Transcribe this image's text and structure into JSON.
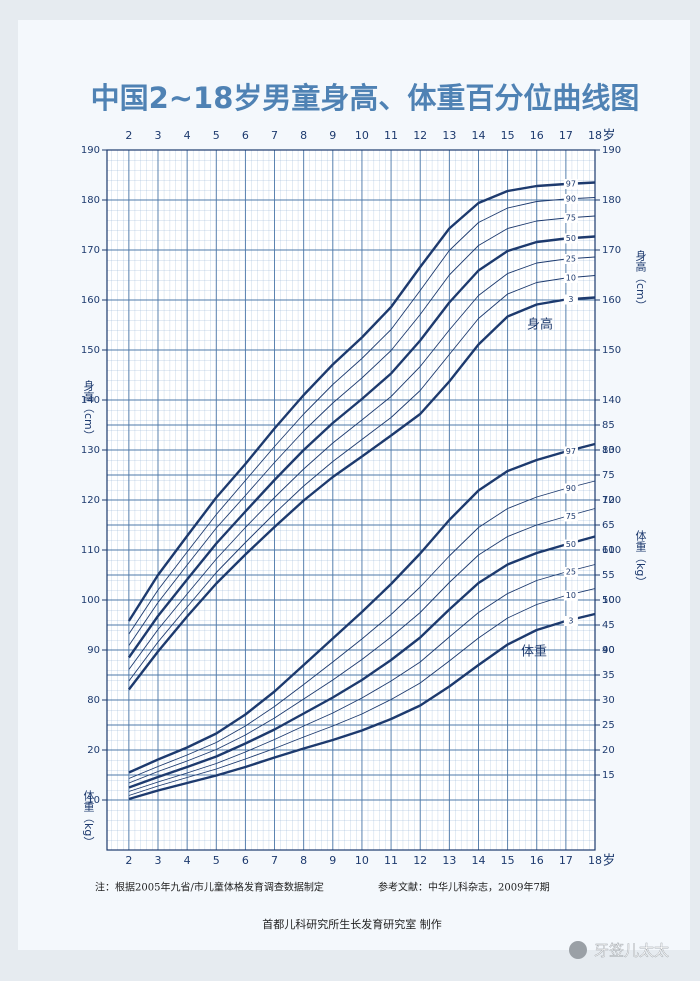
{
  "title": "中国2~18岁男童身高、体重百分位曲线图",
  "notes": [
    "注：根据2005年九省/市儿童体格发育调查数据制定",
    "参考文献：中华儿科杂志，2009年7期"
  ],
  "credit": "首都儿科研究所生长发育研究室  制作",
  "watermark": "牙签儿太太",
  "chart_data": [
    {
      "type": "line",
      "ylabel": "身高（cm）",
      "xlabel": "岁",
      "annotation": "身高",
      "x": [
        2,
        3,
        4,
        5,
        6,
        7,
        8,
        9,
        10,
        11,
        12,
        13,
        14,
        15,
        16,
        17,
        18
      ],
      "xlim": [
        1.25,
        18
      ],
      "xticks": [
        2,
        3,
        4,
        5,
        6,
        7,
        8,
        9,
        10,
        11,
        12,
        13,
        14,
        15,
        16,
        17,
        18
      ],
      "ylim": [
        50,
        190
      ],
      "yticks": [
        80,
        90,
        100,
        110,
        120,
        130,
        140,
        150,
        160,
        170,
        180,
        190
      ],
      "y2lim": [
        50,
        190
      ],
      "y2ticks": [
        90,
        100,
        110,
        120,
        130,
        140,
        150,
        160,
        170,
        180,
        190
      ],
      "grid": true,
      "series": [
        {
          "name": "3",
          "color": "#1d3a6e",
          "values": [
            82.1,
            89.7,
            96.7,
            103.3,
            109.1,
            114.6,
            119.9,
            124.6,
            128.7,
            132.9,
            137.2,
            143.7,
            151.1,
            156.7,
            159.1,
            160.1,
            160.5
          ]
        },
        {
          "name": "10",
          "color": "#1d3a6e",
          "values": [
            83.8,
            91.6,
            98.6,
            105.5,
            111.5,
            117.3,
            122.8,
            127.7,
            132.1,
            136.5,
            141.9,
            149.1,
            156.3,
            161.2,
            163.5,
            164.4,
            164.9
          ]
        },
        {
          "name": "25",
          "color": "#1d3a6e",
          "values": [
            86.1,
            94.1,
            101.2,
            108.2,
            114.5,
            120.5,
            126.2,
            131.4,
            136.0,
            140.7,
            146.7,
            154.0,
            160.9,
            165.3,
            167.4,
            168.2,
            168.6
          ]
        },
        {
          "name": "50",
          "color": "#1d3a6e",
          "values": [
            88.5,
            96.8,
            104.1,
            111.3,
            117.7,
            124.0,
            130.0,
            135.4,
            140.2,
            145.3,
            151.9,
            159.5,
            165.9,
            169.8,
            171.6,
            172.3,
            172.7
          ]
        },
        {
          "name": "75",
          "color": "#1d3a6e",
          "values": [
            90.9,
            99.5,
            107.0,
            114.4,
            120.9,
            127.5,
            133.8,
            139.4,
            144.4,
            149.9,
            157.1,
            165.0,
            170.9,
            174.3,
            175.8,
            176.4,
            176.8
          ]
        },
        {
          "name": "90",
          "color": "#1d3a6e",
          "values": [
            93.2,
            102.0,
            109.6,
            117.1,
            123.9,
            130.7,
            137.2,
            143.1,
            148.3,
            154.1,
            161.9,
            169.9,
            175.5,
            178.4,
            179.7,
            180.2,
            180.5
          ]
        },
        {
          "name": "97",
          "color": "#1d3a6e",
          "values": [
            95.8,
            105.0,
            112.8,
            120.5,
            127.2,
            134.3,
            141.0,
            147.1,
            152.5,
            158.6,
            166.6,
            174.3,
            179.4,
            181.8,
            182.8,
            183.2,
            183.5
          ]
        }
      ]
    },
    {
      "type": "line",
      "ylabel": "体重（kg）",
      "annotation": "体重",
      "x": [
        2,
        3,
        4,
        5,
        6,
        7,
        8,
        9,
        10,
        11,
        12,
        13,
        14,
        15,
        16,
        17,
        18
      ],
      "ylim": [
        0,
        140
      ],
      "yticks": [
        10,
        20
      ],
      "y2lim": [
        0,
        140
      ],
      "y2ticks": [
        15,
        20,
        25,
        30,
        35,
        40,
        45,
        50,
        55,
        60,
        65,
        70,
        75,
        80,
        85
      ],
      "series": [
        {
          "name": "3",
          "color": "#1d3a6e",
          "values": [
            10.2,
            11.9,
            13.4,
            14.9,
            16.6,
            18.5,
            20.3,
            22.0,
            23.9,
            26.2,
            28.9,
            32.7,
            37.0,
            41.1,
            44.0,
            45.8,
            47.2
          ]
        },
        {
          "name": "10",
          "color": "#1d3a6e",
          "values": [
            10.9,
            12.8,
            14.5,
            16.2,
            18.2,
            20.3,
            22.6,
            24.8,
            27.2,
            30.1,
            33.4,
            37.8,
            42.4,
            46.4,
            49.1,
            50.9,
            52.3
          ]
        },
        {
          "name": "25",
          "color": "#1d3a6e",
          "values": [
            11.7,
            13.6,
            15.4,
            17.3,
            19.6,
            22.1,
            24.8,
            27.4,
            30.4,
            33.8,
            37.6,
            42.6,
            47.5,
            51.3,
            53.9,
            55.6,
            57.1
          ]
        },
        {
          "name": "50",
          "color": "#1d3a6e",
          "values": [
            12.5,
            14.6,
            16.6,
            18.7,
            21.3,
            24.1,
            27.3,
            30.5,
            34.0,
            38.0,
            42.5,
            48.1,
            53.4,
            57.1,
            59.4,
            61.1,
            62.7
          ]
        },
        {
          "name": "75",
          "color": "#1d3a6e",
          "values": [
            13.4,
            15.7,
            17.8,
            20.1,
            23.0,
            26.4,
            30.2,
            34.0,
            38.1,
            42.6,
            47.5,
            53.5,
            59.0,
            62.7,
            65.0,
            66.7,
            68.3
          ]
        },
        {
          "name": "90",
          "color": "#1d3a6e",
          "values": [
            14.3,
            16.7,
            19.0,
            21.5,
            24.8,
            28.7,
            33.1,
            37.6,
            42.2,
            47.1,
            52.6,
            58.8,
            64.5,
            68.3,
            70.6,
            72.3,
            73.8
          ]
        },
        {
          "name": "97",
          "color": "#1d3a6e",
          "values": [
            15.5,
            18.1,
            20.5,
            23.3,
            27.1,
            31.7,
            37.0,
            42.3,
            47.6,
            53.2,
            59.3,
            66.0,
            71.9,
            75.8,
            78.0,
            79.7,
            81.2
          ]
        }
      ]
    }
  ]
}
